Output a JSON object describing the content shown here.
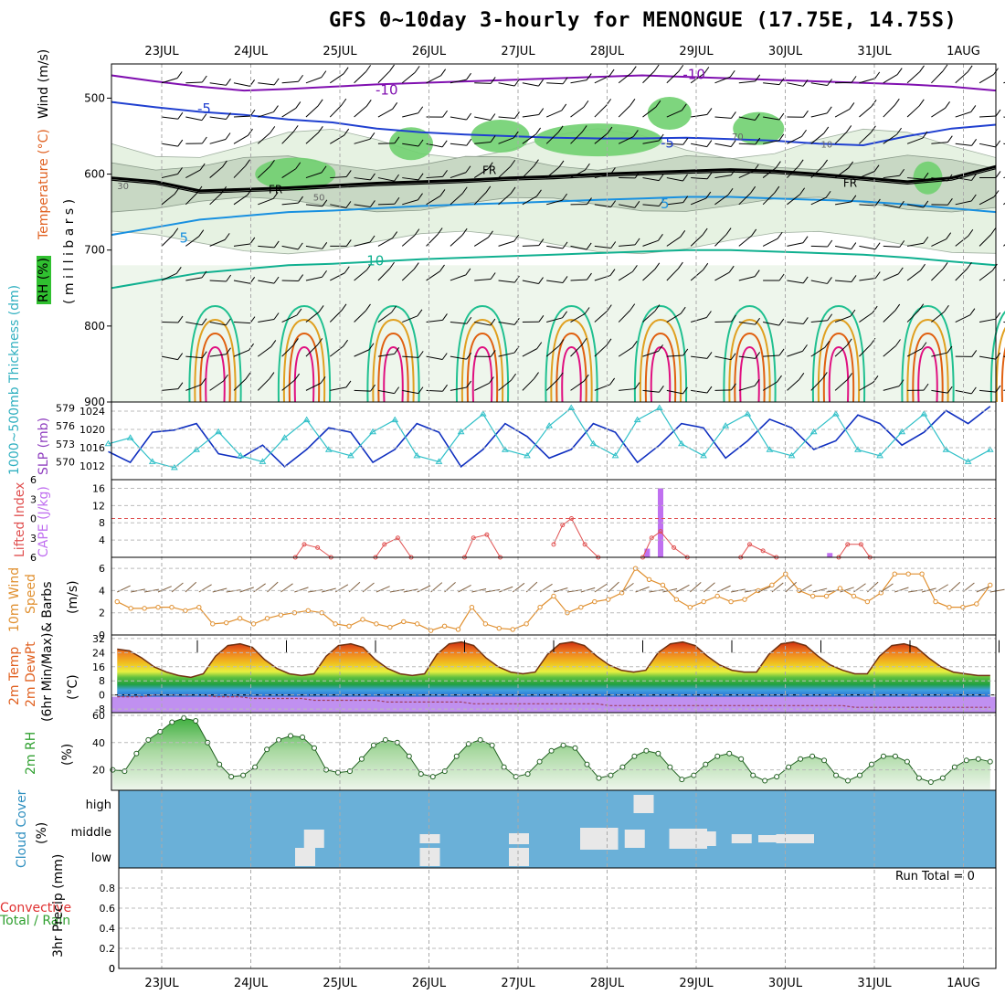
{
  "title": "GFS 0~10day 3-hourly for MENONGUE (17.75E, 14.75S)",
  "dates": [
    "23JUL",
    "24JUL",
    "25JUL",
    "26JUL",
    "27JUL",
    "28JUL",
    "29JUL",
    "30JUL",
    "31JUL",
    "1AUG"
  ],
  "run_total_label": "Run Total = 0",
  "colors": {
    "temp_high": "#e8f0a0",
    "cloud_bg": "#6ab0d8",
    "cloud_fill": "#e8e8e8",
    "cape": "#c070f0",
    "lifted": "#e05050",
    "wind": "#e09030",
    "slp": "#1030c0",
    "thick": "#30c0c8",
    "rh2m": "#70c070"
  },
  "panel_labels": {
    "upper": {
      "wind": "Wind (m/s)",
      "temp": "Temperature (°C)",
      "rh": "RH (%)",
      "mb": "( m i l l i b a r s )"
    },
    "slp": {
      "thick": "1000~500mb Thickness (dm)",
      "slp": "SLP (mb)"
    },
    "cape": {
      "li": "Lifted Index",
      "cape": "CAPE (J/kg)"
    },
    "wind10": {
      "a": "10m Wind",
      "b": "Speed",
      "c": "& Barbs",
      "unit": "(m/s)"
    },
    "temp2m": {
      "a": "2m Temp",
      "b": "2m DewPt",
      "c": "(6hr Min/Max)",
      "unit": "(°C)"
    },
    "rh2m": {
      "a": "2m RH",
      "unit": "(%)"
    },
    "cloud": {
      "a": "Cloud Cover",
      "unit": "(%)"
    },
    "precip": {
      "a": "Total / Rain",
      "b": "Convective",
      "c": "3hr Precip (mm)"
    }
  },
  "chart_data": [
    {
      "type": "heatmap",
      "panel": "upper-air cross-section",
      "ylabel": "millibars",
      "yticks": [
        500,
        600,
        700,
        800,
        900
      ],
      "contour_labels": {
        "temperature": [
          "-10",
          "-5",
          "FR",
          "5",
          "10"
        ],
        "rh": [
          "10",
          "30",
          "50",
          "70"
        ]
      },
      "freezing_level_mb": [
        605,
        610,
        622,
        620,
        618,
        615,
        612,
        610,
        608,
        605,
        603,
        600,
        598,
        596,
        594,
        596,
        600,
        605,
        610,
        605,
        590
      ],
      "temp_minus5_mb": [
        505,
        512,
        518,
        522,
        528,
        532,
        540,
        545,
        548,
        550,
        552,
        553,
        553,
        552,
        554,
        556,
        560,
        562,
        550,
        540,
        535
      ],
      "temp_minus10_mb": [
        470,
        478,
        485,
        490,
        488,
        485,
        482,
        480,
        478,
        476,
        474,
        472,
        470,
        472,
        474,
        476,
        478,
        480,
        482,
        485,
        490
      ],
      "temp_5_mb": [
        680,
        670,
        660,
        655,
        650,
        648,
        645,
        642,
        640,
        638,
        636,
        634,
        632,
        630,
        630,
        632,
        634,
        636,
        640,
        645,
        650
      ]
    },
    {
      "type": "line",
      "panel": "SLP and thickness",
      "yticks_slp": [
        1012,
        1016,
        1020,
        1024
      ],
      "yticks_thickness": [
        570,
        573,
        576,
        579
      ],
      "series": [
        {
          "name": "SLP",
          "values": [
            1015.5,
            1013,
            1020,
            1020.5,
            1022,
            1015,
            1014,
            1017,
            1012,
            1016,
            1021,
            1020,
            1013,
            1016,
            1022,
            1020,
            1012,
            1016,
            1022,
            1019,
            1014,
            1016,
            1022,
            1020,
            1013,
            1017,
            1022,
            1021,
            1014,
            1018,
            1023,
            1021,
            1016,
            1018,
            1024,
            1022,
            1017,
            1020,
            1025,
            1022,
            1026
          ]
        },
        {
          "name": "Thickness",
          "values": [
            573,
            574,
            570,
            569,
            572,
            575,
            571,
            570,
            574,
            577,
            572,
            571,
            575,
            577,
            571,
            570,
            575,
            578,
            572,
            571,
            576,
            579,
            573,
            571,
            577,
            579,
            573,
            571,
            576,
            578,
            572,
            571,
            575,
            578,
            572,
            571,
            575,
            578,
            572,
            570,
            572
          ]
        }
      ]
    },
    {
      "type": "bar",
      "panel": "CAPE and Lifted Index",
      "yticks_cape": [
        4,
        8,
        12,
        16
      ],
      "yticks_li": [
        -6,
        -3,
        0,
        3,
        6
      ],
      "cape_bars": [
        {
          "day": 5.45,
          "value": 2
        },
        {
          "day": 5.6,
          "value": 16
        },
        {
          "day": 7.5,
          "value": 1
        }
      ],
      "lifted_index": [
        [
          {
            "d": 1.5,
            "v": 6
          },
          {
            "d": 1.6,
            "v": 4
          },
          {
            "d": 1.75,
            "v": 4.5
          },
          {
            "d": 1.9,
            "v": 6
          }
        ],
        [
          {
            "d": 2.4,
            "v": 6
          },
          {
            "d": 2.5,
            "v": 4
          },
          {
            "d": 2.65,
            "v": 3
          },
          {
            "d": 2.8,
            "v": 6
          }
        ],
        [
          {
            "d": 3.4,
            "v": 6
          },
          {
            "d": 3.5,
            "v": 3
          },
          {
            "d": 3.65,
            "v": 2.5
          },
          {
            "d": 3.8,
            "v": 6
          }
        ],
        [
          {
            "d": 4.4,
            "v": 4
          },
          {
            "d": 4.5,
            "v": 1
          },
          {
            "d": 4.6,
            "v": 0
          },
          {
            "d": 4.75,
            "v": 4
          },
          {
            "d": 4.9,
            "v": 6
          }
        ],
        [
          {
            "d": 5.4,
            "v": 6
          },
          {
            "d": 5.5,
            "v": 3
          },
          {
            "d": 5.6,
            "v": 2
          },
          {
            "d": 5.75,
            "v": 4.5
          },
          {
            "d": 5.9,
            "v": 6
          }
        ],
        [
          {
            "d": 6.5,
            "v": 6
          },
          {
            "d": 6.6,
            "v": 4
          },
          {
            "d": 6.75,
            "v": 5
          },
          {
            "d": 6.9,
            "v": 6
          }
        ],
        [
          {
            "d": 7.6,
            "v": 6
          },
          {
            "d": 7.7,
            "v": 4
          },
          {
            "d": 7.85,
            "v": 4
          },
          {
            "d": 7.95,
            "v": 6
          }
        ]
      ]
    },
    {
      "type": "line",
      "panel": "10m wind speed",
      "yticks": [
        0,
        2,
        4,
        6
      ],
      "values": [
        3,
        2.4,
        2.4,
        2.5,
        2.5,
        2.2,
        2.5,
        1.0,
        1.1,
        1.5,
        1.0,
        1.5,
        1.8,
        2.0,
        2.2,
        2.0,
        1.0,
        0.8,
        1.4,
        1.0,
        0.7,
        1.2,
        1.0,
        0.4,
        0.8,
        0.5,
        2.5,
        1.0,
        0.6,
        0.5,
        1.0,
        2.5,
        3.5,
        2.0,
        2.5,
        3.0,
        3.2,
        3.8,
        6.0,
        5.0,
        4.5,
        3.2,
        2.5,
        3.0,
        3.5,
        3.0,
        3.2,
        4.0,
        4.5,
        5.5,
        4.0,
        3.5,
        3.5,
        4.2,
        3.5,
        3.0,
        3.8,
        5.5,
        5.5,
        5.5,
        3.0,
        2.5,
        2.5,
        2.8,
        4.5
      ]
    },
    {
      "type": "area",
      "panel": "2m temperature and dewpoint",
      "yticks": [
        -8,
        0,
        8,
        16,
        24,
        32
      ],
      "temp": [
        26,
        25,
        21,
        16,
        13,
        11,
        10,
        12,
        22,
        28,
        29,
        27,
        20,
        15,
        12,
        11,
        12,
        22,
        28,
        29,
        27,
        20,
        15,
        12,
        11,
        12,
        23,
        29,
        30,
        28,
        21,
        16,
        13,
        12,
        13,
        23,
        29,
        30,
        28,
        22,
        17,
        14,
        13,
        14,
        24,
        29,
        30,
        28,
        22,
        17,
        14,
        13,
        13,
        23,
        29,
        30,
        28,
        22,
        17,
        14,
        12,
        12,
        22,
        28,
        29,
        27,
        21,
        16,
        13,
        12,
        11,
        11
      ],
      "dewpoint": [
        -1,
        -1,
        -1,
        0,
        0,
        0,
        0,
        0,
        -1,
        -1,
        -1,
        -2,
        -2,
        -2,
        -2,
        -2,
        -3,
        -3,
        -3,
        -3,
        -3,
        -3,
        -4,
        -4,
        -4,
        -4,
        -4,
        -4,
        -4,
        -5,
        -5,
        -5,
        -5,
        -5,
        -5,
        -5,
        -5,
        -5,
        -5,
        -5,
        -6,
        -6,
        -6,
        -6,
        -6,
        -6,
        -6,
        -6,
        -6,
        -6,
        -6,
        -6,
        -6,
        -6,
        -6,
        -6,
        -6,
        -6,
        -6,
        -6,
        -7,
        -7,
        -7,
        -7,
        -7,
        -7,
        -7,
        -7,
        -7,
        -7,
        -7,
        -7
      ]
    },
    {
      "type": "area",
      "panel": "2m RH",
      "yticks": [
        20,
        40,
        60
      ],
      "values": [
        20,
        19,
        32,
        42,
        48,
        55,
        58,
        56,
        40,
        24,
        15,
        16,
        22,
        35,
        42,
        45,
        44,
        36,
        20,
        18,
        19,
        28,
        38,
        42,
        40,
        30,
        17,
        15,
        19,
        30,
        39,
        42,
        38,
        22,
        15,
        17,
        26,
        34,
        38,
        36,
        24,
        14,
        16,
        22,
        30,
        34,
        32,
        22,
        13,
        16,
        24,
        30,
        32,
        28,
        16,
        12,
        15,
        22,
        28,
        30,
        27,
        16,
        12,
        16,
        24,
        30,
        30,
        26,
        14,
        11,
        14,
        22,
        27,
        28,
        26
      ]
    },
    {
      "type": "bar",
      "panel": "cloud cover",
      "ylabels": [
        "high",
        "middle",
        "low"
      ],
      "high": [
        {
          "day": 5.4,
          "value": 1
        }
      ],
      "middle": [
        {
          "day": 1.7,
          "value": 1
        },
        {
          "day": 3.0,
          "value": 0.5
        },
        {
          "day": 4.0,
          "value": 0.6
        },
        {
          "day": 4.8,
          "value": 1.2
        },
        {
          "day": 5.0,
          "value": 1.2
        },
        {
          "day": 5.3,
          "value": 1.0
        },
        {
          "day": 5.8,
          "value": 1.1
        },
        {
          "day": 6.0,
          "value": 1.1
        },
        {
          "day": 6.1,
          "value": 0.8
        },
        {
          "day": 6.5,
          "value": 0.5
        },
        {
          "day": 6.8,
          "value": 0.4
        },
        {
          "day": 7.0,
          "value": 0.5
        },
        {
          "day": 7.2,
          "value": 0.5
        }
      ],
      "low": [
        {
          "day": 1.6,
          "value": 1
        },
        {
          "day": 3.0,
          "value": 1
        },
        {
          "day": 4.0,
          "value": 1
        }
      ]
    },
    {
      "type": "bar",
      "panel": "3hr precipitation",
      "yticks": [
        0,
        0.2,
        0.4,
        0.6,
        0.8
      ],
      "values": []
    }
  ]
}
